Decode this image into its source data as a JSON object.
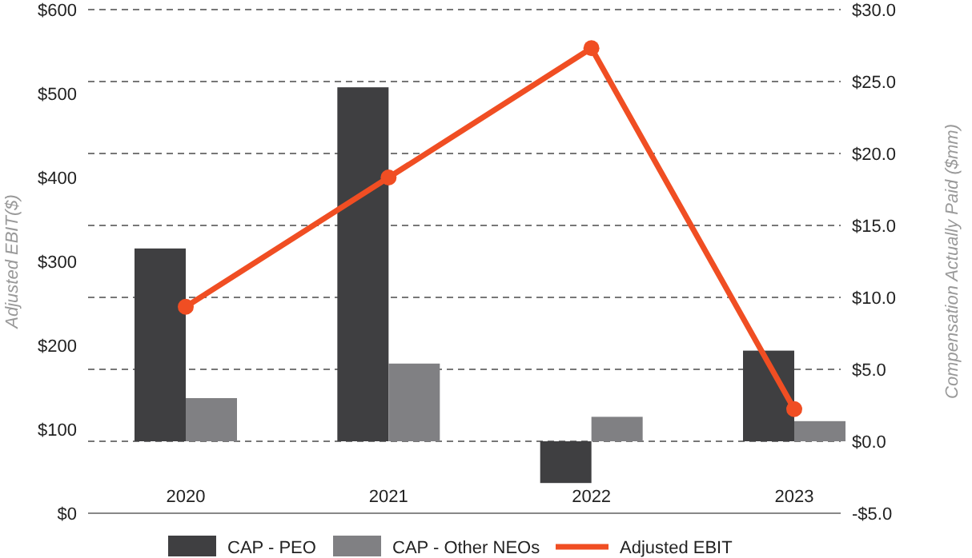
{
  "chart_data": {
    "type": "bar",
    "categories": [
      "2020",
      "2021",
      "2022",
      "2023"
    ],
    "series": [
      {
        "name": "CAP - PEO",
        "color": "#3f3f41",
        "axis": "y2",
        "values": [
          13.4,
          24.6,
          -2.9,
          6.3
        ]
      },
      {
        "name": "CAP - Other NEOs",
        "color": "#808083",
        "axis": "y2",
        "values": [
          3.0,
          5.4,
          1.7,
          1.4
        ]
      },
      {
        "name": "Adjusted EBIT",
        "type": "line",
        "color": "#f04e23",
        "axis": "y",
        "marker": "circle",
        "values": [
          246,
          400,
          554,
          124
        ]
      }
    ],
    "ylabel": "Adjusted EBIT($)",
    "y2label": "Compensation Actually Paid ($mm)",
    "ylim": [
      0,
      600
    ],
    "yticks": [
      {
        "value": 0,
        "label": "$0"
      },
      {
        "value": 100,
        "label": "$100"
      },
      {
        "value": 200,
        "label": "$200"
      },
      {
        "value": 300,
        "label": "$300"
      },
      {
        "value": 400,
        "label": "$400"
      },
      {
        "value": 500,
        "label": "$500"
      },
      {
        "value": 600,
        "label": "$600"
      }
    ],
    "y2lim": [
      -5,
      30
    ],
    "y2ticks": [
      {
        "value": -5,
        "label": "-$5.0"
      },
      {
        "value": 0,
        "label": "$0.0"
      },
      {
        "value": 5,
        "label": "$5.0"
      },
      {
        "value": 10,
        "label": "$10.0"
      },
      {
        "value": 15,
        "label": "$15.0"
      },
      {
        "value": 20,
        "label": "$20.0"
      },
      {
        "value": 25,
        "label": "$25.0"
      },
      {
        "value": 30,
        "label": "$30.0"
      }
    ],
    "grid": true,
    "legend": "bottom"
  }
}
